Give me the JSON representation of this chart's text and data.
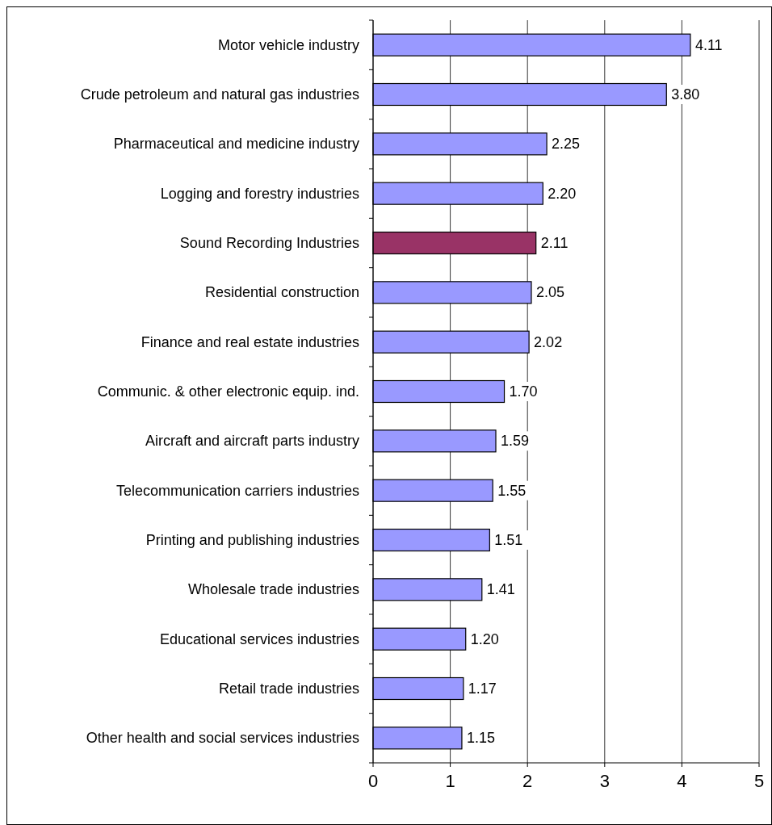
{
  "chart_data": {
    "type": "bar",
    "orientation": "horizontal",
    "categories": [
      "Motor vehicle industry",
      "Crude petroleum and natural gas industries",
      "Pharmaceutical and medicine industry",
      "Logging and forestry industries",
      "Sound Recording Industries",
      "Residential construction",
      "Finance and real estate industries",
      "Communic. & other electronic equip. ind.",
      "Aircraft and aircraft parts industry",
      "Telecommunication carriers industries",
      "Printing and publishing industries",
      "Wholesale trade industries",
      "Educational services industries",
      "Retail trade industries",
      "Other health and social services industries"
    ],
    "values": [
      4.11,
      3.8,
      2.25,
      2.2,
      2.11,
      2.05,
      2.02,
      1.7,
      1.59,
      1.55,
      1.51,
      1.41,
      1.2,
      1.17,
      1.15
    ],
    "colors": [
      "#9999ff",
      "#9999ff",
      "#9999ff",
      "#9999ff",
      "#993366",
      "#9999ff",
      "#9999ff",
      "#9999ff",
      "#9999ff",
      "#9999ff",
      "#9999ff",
      "#9999ff",
      "#9999ff",
      "#9999ff",
      "#9999ff"
    ],
    "value_labels": [
      "4.11",
      "3.80",
      "2.25",
      "2.20",
      "2.11",
      "2.05",
      "2.02",
      "1.70",
      "1.59",
      "1.55",
      "1.51",
      "1.41",
      "1.20",
      "1.17",
      "1.15"
    ],
    "xlim": [
      0,
      5
    ],
    "xticks": [
      0,
      1,
      2,
      3,
      4,
      5
    ],
    "grid": "x"
  }
}
